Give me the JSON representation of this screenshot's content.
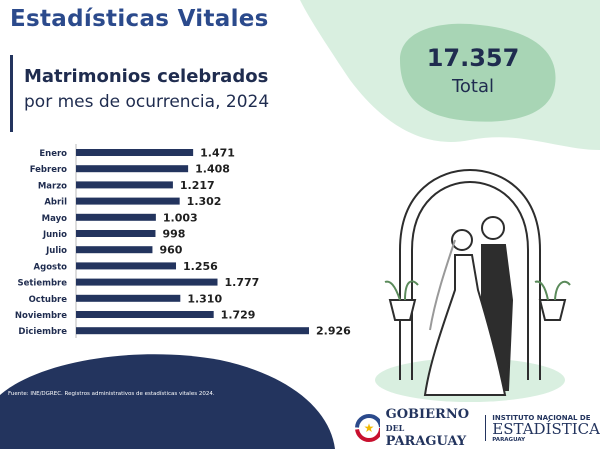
{
  "header": {
    "title": "Estadísticas Vitales",
    "subtitle_bold": "Matrimonios celebrados",
    "subtitle": "por mes de ocurrencia, 2024"
  },
  "total": {
    "value": "17.357",
    "label": "Total"
  },
  "colors": {
    "bar": "#23345e",
    "accent_green": "#a8d5b5",
    "navy": "#23345e",
    "title": "#2b4a8c"
  },
  "chart_data": {
    "type": "bar",
    "orientation": "horizontal",
    "categories": [
      "Enero",
      "Febrero",
      "Marzo",
      "Abril",
      "Mayo",
      "Junio",
      "Julio",
      "Agosto",
      "Setiembre",
      "Octubre",
      "Noviembre",
      "Diciembre"
    ],
    "values": [
      1471,
      1408,
      1217,
      1302,
      1003,
      998,
      960,
      1256,
      1777,
      1310,
      1729,
      2926
    ],
    "value_labels": [
      "1.471",
      "1.408",
      "1.217",
      "1.302",
      "1.003",
      "998",
      "960",
      "1.256",
      "1.777",
      "1.310",
      "1.729",
      "2.926"
    ],
    "xlim": [
      0,
      2926
    ],
    "grid": false
  },
  "footer": {
    "source": "Fuente: INE/DGREC. Registros administrativos de estadísticas vitales 2024.",
    "gob_line1": "GOBIERNO",
    "gob_del": "DEL",
    "gob_line2": "PARAGUAY",
    "ine_line1": "INSTITUTO NACIONAL DE",
    "ine_line2": "ESTADÍSTICA",
    "ine_line3": "PARAGUAY"
  }
}
